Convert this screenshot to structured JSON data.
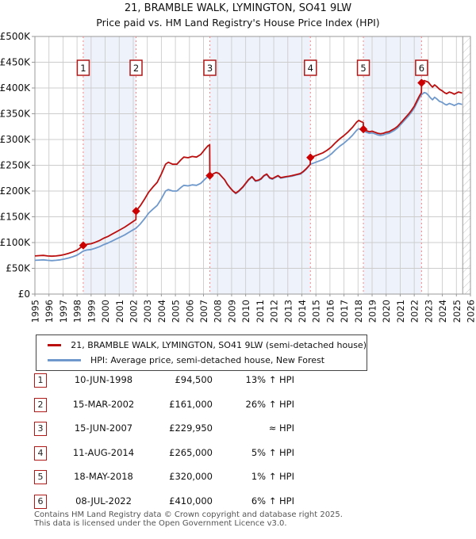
{
  "title": "21, BRAMBLE WALK, LYMINGTON, SO41 9LW",
  "subtitle": "Price paid vs. HM Land Registry's House Price Index (HPI)",
  "colors": {
    "property_line": "#bb0f0f",
    "hpi_line": "#6f99cc",
    "sale_dash_line": "#f98585",
    "ownership_band": "#eef3fb",
    "gridline": "#cccccc",
    "plot_border": "#999999",
    "marker": "#cc0000",
    "badge_border": "#b01818",
    "hatch": "#c4c4c4",
    "footer_text": "#555555"
  },
  "legend": [
    {
      "label": "21, BRAMBLE WALK, LYMINGTON, SO41 9LW (semi-detached house)",
      "color": "#bb0f0f"
    },
    {
      "label": "HPI: Average price, semi-detached house, New Forest",
      "color": "#6f99cc"
    }
  ],
  "sales": [
    {
      "n": "1",
      "date": "10-JUN-1998",
      "price": "£94,500",
      "hpi": "13% ↑ HPI",
      "year": 1998.44,
      "value": 94.5
    },
    {
      "n": "2",
      "date": "15-MAR-2002",
      "price": "£161,000",
      "hpi": "26% ↑ HPI",
      "year": 2002.2,
      "value": 161
    },
    {
      "n": "3",
      "date": "15-JUN-2007",
      "price": "£229,950",
      "hpi": "≈ HPI",
      "year": 2007.45,
      "value": 229.95
    },
    {
      "n": "4",
      "date": "11-AUG-2014",
      "price": "£265,000",
      "hpi": "5% ↑ HPI",
      "year": 2014.61,
      "value": 265
    },
    {
      "n": "5",
      "date": "18-MAY-2018",
      "price": "£320,000",
      "hpi": "1% ↑ HPI",
      "year": 2018.38,
      "value": 320
    },
    {
      "n": "6",
      "date": "08-JUL-2022",
      "price": "£410,000",
      "hpi": "6% ↑ HPI",
      "year": 2022.52,
      "value": 410
    }
  ],
  "chart_data": {
    "type": "line",
    "title": "Price paid vs. HM Land Registry's House Price Index (HPI)",
    "x_range": [
      1995,
      2026
    ],
    "y_range": [
      0,
      500
    ],
    "y_unit": "£K",
    "grid": true,
    "legend_position": "below",
    "y_tick_labels": [
      "£0",
      "£50K",
      "£100K",
      "£150K",
      "£200K",
      "£250K",
      "£300K",
      "£350K",
      "£400K",
      "£450K",
      "£500K"
    ],
    "x_tick_labels": [
      "1995",
      "1996",
      "1997",
      "1998",
      "1999",
      "2000",
      "2001",
      "2002",
      "2003",
      "2004",
      "2005",
      "2006",
      "2007",
      "2008",
      "2009",
      "2010",
      "2011",
      "2012",
      "2013",
      "2014",
      "2015",
      "2016",
      "2017",
      "2018",
      "2019",
      "2020",
      "2021",
      "2022",
      "2023",
      "2024",
      "2025",
      "2026"
    ],
    "ownership_bands": [
      [
        1998.44,
        2002.2
      ],
      [
        2007.45,
        2014.61
      ],
      [
        2018.38,
        2022.52
      ]
    ],
    "future_hatch_start": 2025.45,
    "series": [
      {
        "name": "21, BRAMBLE WALK, LYMINGTON, SO41 9LW (semi-detached house)",
        "color": "#bb0f0f",
        "points": [
          [
            1995.0,
            74
          ],
          [
            1995.3,
            74.6
          ],
          [
            1995.6,
            75.1
          ],
          [
            1995.9,
            74
          ],
          [
            1996.2,
            73.5
          ],
          [
            1996.5,
            74
          ],
          [
            1996.8,
            75.1
          ],
          [
            1997.1,
            76.8
          ],
          [
            1997.4,
            79.1
          ],
          [
            1997.7,
            81.9
          ],
          [
            1998.0,
            85.3
          ],
          [
            1998.2,
            89.3
          ],
          [
            1998.44,
            94.5
          ],
          [
            1998.7,
            96.6
          ],
          [
            1999.0,
            97.7
          ],
          [
            1999.3,
            100.6
          ],
          [
            1999.6,
            104
          ],
          [
            1999.9,
            108.5
          ],
          [
            2000.2,
            111.9
          ],
          [
            2000.5,
            116.4
          ],
          [
            2000.8,
            120.9
          ],
          [
            2001.1,
            125.4
          ],
          [
            2001.4,
            130
          ],
          [
            2001.7,
            135.6
          ],
          [
            2002.0,
            141.3
          ],
          [
            2002.19,
            144.4
          ],
          [
            2002.2,
            161
          ],
          [
            2002.5,
            171.4
          ],
          [
            2002.8,
            184
          ],
          [
            2003.1,
            197.8
          ],
          [
            2003.4,
            207.9
          ],
          [
            2003.7,
            216.7
          ],
          [
            2004.0,
            233.1
          ],
          [
            2004.3,
            252
          ],
          [
            2004.5,
            255.8
          ],
          [
            2004.8,
            252
          ],
          [
            2005.1,
            252
          ],
          [
            2005.4,
            260.8
          ],
          [
            2005.6,
            265.9
          ],
          [
            2005.9,
            264.6
          ],
          [
            2006.2,
            267.1
          ],
          [
            2006.5,
            265.9
          ],
          [
            2006.8,
            270.9
          ],
          [
            2007.1,
            281
          ],
          [
            2007.3,
            287.3
          ],
          [
            2007.44,
            289.8
          ],
          [
            2007.45,
            229.95
          ],
          [
            2007.6,
            232
          ],
          [
            2007.9,
            236
          ],
          [
            2008.1,
            234
          ],
          [
            2008.3,
            228
          ],
          [
            2008.5,
            222
          ],
          [
            2008.7,
            213
          ],
          [
            2008.9,
            206
          ],
          [
            2009.1,
            200
          ],
          [
            2009.3,
            196
          ],
          [
            2009.5,
            200
          ],
          [
            2009.8,
            208
          ],
          [
            2010.0,
            215
          ],
          [
            2010.2,
            222
          ],
          [
            2010.45,
            228
          ],
          [
            2010.7,
            220
          ],
          [
            2010.9,
            221
          ],
          [
            2011.1,
            224
          ],
          [
            2011.3,
            230
          ],
          [
            2011.5,
            233
          ],
          [
            2011.7,
            226
          ],
          [
            2011.9,
            224
          ],
          [
            2012.1,
            227
          ],
          [
            2012.3,
            230
          ],
          [
            2012.5,
            226
          ],
          [
            2012.7,
            227
          ],
          [
            2012.9,
            228
          ],
          [
            2013.1,
            229
          ],
          [
            2013.3,
            230
          ],
          [
            2013.6,
            232
          ],
          [
            2013.9,
            234
          ],
          [
            2014.1,
            238
          ],
          [
            2014.3,
            243
          ],
          [
            2014.5,
            249
          ],
          [
            2014.6,
            252
          ],
          [
            2014.61,
            265
          ],
          [
            2014.9,
            267.8
          ],
          [
            2015.2,
            270.9
          ],
          [
            2015.5,
            274.1
          ],
          [
            2015.8,
            279.3
          ],
          [
            2016.1,
            285.6
          ],
          [
            2016.4,
            294
          ],
          [
            2016.7,
            301.4
          ],
          [
            2017.0,
            307.7
          ],
          [
            2017.3,
            315
          ],
          [
            2017.6,
            323.4
          ],
          [
            2017.9,
            333.9
          ],
          [
            2018.05,
            337.1
          ],
          [
            2018.2,
            334.9
          ],
          [
            2018.37,
            332.9
          ],
          [
            2018.38,
            320
          ],
          [
            2018.6,
            317.1
          ],
          [
            2018.8,
            315.1
          ],
          [
            2019.0,
            316.1
          ],
          [
            2019.2,
            314.1
          ],
          [
            2019.4,
            312.1
          ],
          [
            2019.6,
            311.1
          ],
          [
            2019.8,
            312.1
          ],
          [
            2020.0,
            314.1
          ],
          [
            2020.2,
            315.1
          ],
          [
            2020.4,
            318.2
          ],
          [
            2020.6,
            321.2
          ],
          [
            2020.8,
            325.2
          ],
          [
            2021.0,
            331.3
          ],
          [
            2021.2,
            337.3
          ],
          [
            2021.4,
            343.4
          ],
          [
            2021.6,
            349.5
          ],
          [
            2021.8,
            356.5
          ],
          [
            2022.0,
            364.6
          ],
          [
            2022.2,
            375.7
          ],
          [
            2022.35,
            383.8
          ],
          [
            2022.51,
            390.9
          ],
          [
            2022.52,
            410
          ],
          [
            2022.7,
            414.5
          ],
          [
            2022.85,
            413
          ],
          [
            2023.0,
            411.3
          ],
          [
            2023.15,
            406
          ],
          [
            2023.3,
            401.7
          ],
          [
            2023.45,
            406
          ],
          [
            2023.6,
            402.8
          ],
          [
            2023.8,
            397.5
          ],
          [
            2024.0,
            394.3
          ],
          [
            2024.15,
            391.1
          ],
          [
            2024.3,
            389
          ],
          [
            2024.5,
            392.2
          ],
          [
            2024.7,
            390.1
          ],
          [
            2024.85,
            388
          ],
          [
            2025.0,
            390.1
          ],
          [
            2025.15,
            392.2
          ],
          [
            2025.3,
            391.1
          ],
          [
            2025.4,
            390.1
          ]
        ]
      },
      {
        "name": "HPI: Average price, semi-detached house, New Forest",
        "color": "#6f99cc",
        "points": [
          [
            1995.0,
            65.5
          ],
          [
            1995.3,
            66
          ],
          [
            1995.6,
            66.5
          ],
          [
            1995.9,
            65.5
          ],
          [
            1996.2,
            65
          ],
          [
            1996.5,
            65.5
          ],
          [
            1996.8,
            66.5
          ],
          [
            1997.1,
            68
          ],
          [
            1997.4,
            70
          ],
          [
            1997.7,
            72.5
          ],
          [
            1998.0,
            75.5
          ],
          [
            1998.2,
            79
          ],
          [
            1998.44,
            83.6
          ],
          [
            1998.7,
            85.5
          ],
          [
            1999.0,
            86.5
          ],
          [
            1999.3,
            89
          ],
          [
            1999.6,
            92
          ],
          [
            1999.9,
            96
          ],
          [
            2000.2,
            99
          ],
          [
            2000.5,
            103
          ],
          [
            2000.8,
            107
          ],
          [
            2001.1,
            111
          ],
          [
            2001.4,
            115
          ],
          [
            2001.7,
            120
          ],
          [
            2002.0,
            125
          ],
          [
            2002.2,
            127.8
          ],
          [
            2002.5,
            136
          ],
          [
            2002.8,
            146
          ],
          [
            2003.1,
            157
          ],
          [
            2003.4,
            165
          ],
          [
            2003.7,
            172
          ],
          [
            2004.0,
            185
          ],
          [
            2004.3,
            200
          ],
          [
            2004.5,
            203
          ],
          [
            2004.8,
            200
          ],
          [
            2005.1,
            200
          ],
          [
            2005.4,
            207
          ],
          [
            2005.6,
            211
          ],
          [
            2005.9,
            210
          ],
          [
            2006.2,
            212
          ],
          [
            2006.5,
            211
          ],
          [
            2006.8,
            215
          ],
          [
            2007.1,
            223
          ],
          [
            2007.3,
            228
          ],
          [
            2007.45,
            230
          ],
          [
            2007.6,
            232
          ],
          [
            2007.9,
            236
          ],
          [
            2008.1,
            234
          ],
          [
            2008.3,
            228
          ],
          [
            2008.5,
            222
          ],
          [
            2008.7,
            213
          ],
          [
            2008.9,
            206
          ],
          [
            2009.1,
            200
          ],
          [
            2009.3,
            195
          ],
          [
            2009.5,
            199
          ],
          [
            2009.8,
            207
          ],
          [
            2010.0,
            214
          ],
          [
            2010.2,
            221
          ],
          [
            2010.45,
            227
          ],
          [
            2010.7,
            219
          ],
          [
            2010.9,
            220
          ],
          [
            2011.1,
            223
          ],
          [
            2011.3,
            229
          ],
          [
            2011.5,
            232
          ],
          [
            2011.7,
            225
          ],
          [
            2011.9,
            223
          ],
          [
            2012.1,
            226
          ],
          [
            2012.3,
            229
          ],
          [
            2012.5,
            225
          ],
          [
            2012.7,
            226
          ],
          [
            2012.9,
            227
          ],
          [
            2013.1,
            228
          ],
          [
            2013.3,
            229
          ],
          [
            2013.6,
            231
          ],
          [
            2013.9,
            233
          ],
          [
            2014.1,
            237
          ],
          [
            2014.3,
            242
          ],
          [
            2014.5,
            248
          ],
          [
            2014.61,
            252
          ],
          [
            2014.9,
            255
          ],
          [
            2015.2,
            258
          ],
          [
            2015.5,
            261
          ],
          [
            2015.8,
            266
          ],
          [
            2016.1,
            272
          ],
          [
            2016.4,
            280
          ],
          [
            2016.7,
            287
          ],
          [
            2017.0,
            293
          ],
          [
            2017.3,
            300
          ],
          [
            2017.6,
            308
          ],
          [
            2017.9,
            318
          ],
          [
            2018.05,
            321
          ],
          [
            2018.2,
            319
          ],
          [
            2018.38,
            317
          ],
          [
            2018.6,
            314
          ],
          [
            2018.8,
            312
          ],
          [
            2019.0,
            313
          ],
          [
            2019.2,
            311
          ],
          [
            2019.4,
            309
          ],
          [
            2019.6,
            308
          ],
          [
            2019.8,
            309
          ],
          [
            2020.0,
            311
          ],
          [
            2020.2,
            312
          ],
          [
            2020.4,
            315
          ],
          [
            2020.6,
            318
          ],
          [
            2020.8,
            322
          ],
          [
            2021.0,
            328
          ],
          [
            2021.2,
            334
          ],
          [
            2021.4,
            340
          ],
          [
            2021.6,
            346
          ],
          [
            2021.8,
            353
          ],
          [
            2022.0,
            361
          ],
          [
            2022.2,
            372
          ],
          [
            2022.35,
            380
          ],
          [
            2022.52,
            387
          ],
          [
            2022.7,
            391
          ],
          [
            2022.85,
            390
          ],
          [
            2023.0,
            386
          ],
          [
            2023.15,
            381
          ],
          [
            2023.3,
            377
          ],
          [
            2023.45,
            382
          ],
          [
            2023.6,
            379
          ],
          [
            2023.8,
            374
          ],
          [
            2024.0,
            372
          ],
          [
            2024.15,
            369
          ],
          [
            2024.3,
            367
          ],
          [
            2024.5,
            370
          ],
          [
            2024.7,
            368
          ],
          [
            2024.85,
            366
          ],
          [
            2025.0,
            368
          ],
          [
            2025.15,
            370
          ],
          [
            2025.3,
            369
          ],
          [
            2025.4,
            368
          ]
        ]
      }
    ]
  },
  "footer": {
    "line1": "Contains HM Land Registry data © Crown copyright and database right 2025.",
    "line2": "This data is licensed under the Open Government Licence v3.0."
  }
}
